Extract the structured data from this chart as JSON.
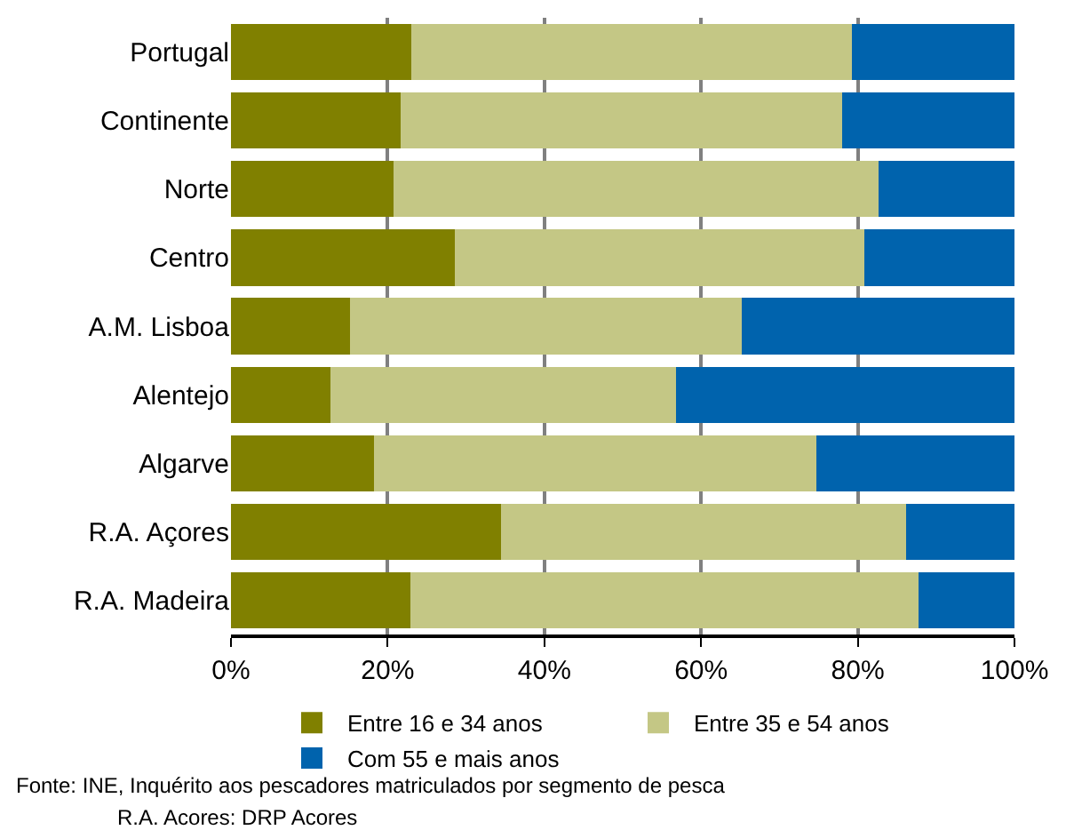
{
  "chart_data": {
    "type": "bar",
    "orientation": "horizontal",
    "stacked": true,
    "categories": [
      "Portugal",
      "Continente",
      "Norte",
      "Centro",
      "A.M. Lisboa",
      "Alentejo",
      "Algarve",
      "R.A. Açores",
      "R.A. Madeira"
    ],
    "series": [
      {
        "name": "Entre 16 e 34 anos",
        "color": "#808000",
        "values": [
          23.0,
          21.7,
          20.8,
          28.6,
          15.2,
          12.7,
          18.2,
          34.5,
          22.9
        ]
      },
      {
        "name": "Entre 35 e 54 anos",
        "color": "#c4c785",
        "values": [
          56.2,
          56.3,
          61.9,
          52.2,
          50.0,
          44.1,
          56.5,
          51.7,
          64.9
        ]
      },
      {
        "name": "Com 55 e mais anos",
        "color": "#0063ad",
        "values": [
          20.8,
          22.0,
          17.3,
          19.2,
          34.8,
          43.2,
          25.3,
          13.8,
          12.2
        ]
      }
    ],
    "xlim": [
      0,
      100
    ],
    "xticks": [
      {
        "value": 0,
        "label": "0%"
      },
      {
        "value": 20,
        "label": "20%"
      },
      {
        "value": 40,
        "label": "40%"
      },
      {
        "value": 60,
        "label": "60%"
      },
      {
        "value": 80,
        "label": "80%"
      },
      {
        "value": 100,
        "label": "100%"
      }
    ],
    "grid": "x",
    "legend": "bottom",
    "annotations": [
      "Fonte: INE, Inquérito aos pescadores matriculados por segmento de pesca",
      "R.A. Acores: DRP Acores"
    ]
  }
}
